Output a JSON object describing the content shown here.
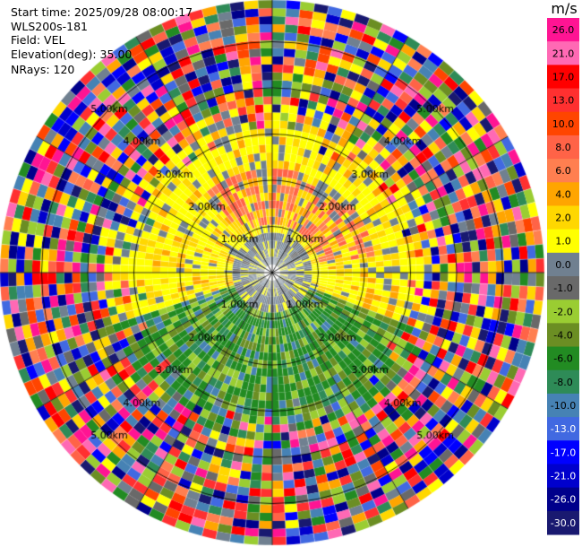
{
  "header": {
    "start_time": "Start time: 2025/09/28 08:00:17",
    "instrument": "WLS200s-181",
    "field": "Field: VEL",
    "elevation": "Elevation(deg): 35.00",
    "nrays": "NRays: 120"
  },
  "colorbar": {
    "unit": "m/s",
    "ticks": [
      "26.0",
      "21.0",
      "17.0",
      "13.0",
      "10.0",
      "8.0",
      "6.0",
      "4.0",
      "2.0",
      "1.0",
      "0.0",
      "-1.0",
      "-2.0",
      "-4.0",
      "-6.0",
      "-8.0",
      "-10.0",
      "-13.0",
      "-17.0",
      "-21.0",
      "-26.0",
      "-30.0"
    ],
    "colors": [
      "#ff1493",
      "#ff69b4",
      "#ff0000",
      "#ff3030",
      "#ff4500",
      "#ff6347",
      "#ff7f50",
      "#ffa500",
      "#ffd700",
      "#ffff00",
      "#708090",
      "#696969",
      "#9acd32",
      "#6b8e23",
      "#228b22",
      "#2e8b57",
      "#4682b4",
      "#4169e1",
      "#0000ff",
      "#0000cd",
      "#00008b",
      "#191970"
    ]
  },
  "chart_data": {
    "type": "heatmap",
    "projection": "polar-ppi",
    "field": "VEL",
    "units": "m/s",
    "elevation_deg": 35.0,
    "n_rays": 120,
    "range_rings_km": [
      1.0,
      2.0,
      3.0,
      4.0,
      5.0
    ],
    "ring_labels": [
      "1.00km",
      "2.00km",
      "3.00km",
      "4.00km",
      "5.00km"
    ],
    "max_range_km": 5.9,
    "vmin": -30.0,
    "vmax": 26.0,
    "spokes_deg": [
      0,
      30,
      60,
      90,
      120,
      150,
      180,
      210,
      240,
      270,
      300,
      330
    ],
    "pattern": {
      "sector_1": {
        "azimuth_deg": [
          250,
          110
        ],
        "near_km": 0.9,
        "far_km": 3.2,
        "dominant_ms": [
          1.0,
          6.0
        ]
      },
      "sector_2": {
        "azimuth_deg": [
          110,
          250
        ],
        "near_km": 0.9,
        "far_km": 3.6,
        "dominant_ms": [
          -8.0,
          -2.0
        ]
      },
      "core_km": 0.9,
      "core_ms": [
        -1.0,
        0.0
      ],
      "clutter_beyond_km": 3.6
    }
  }
}
